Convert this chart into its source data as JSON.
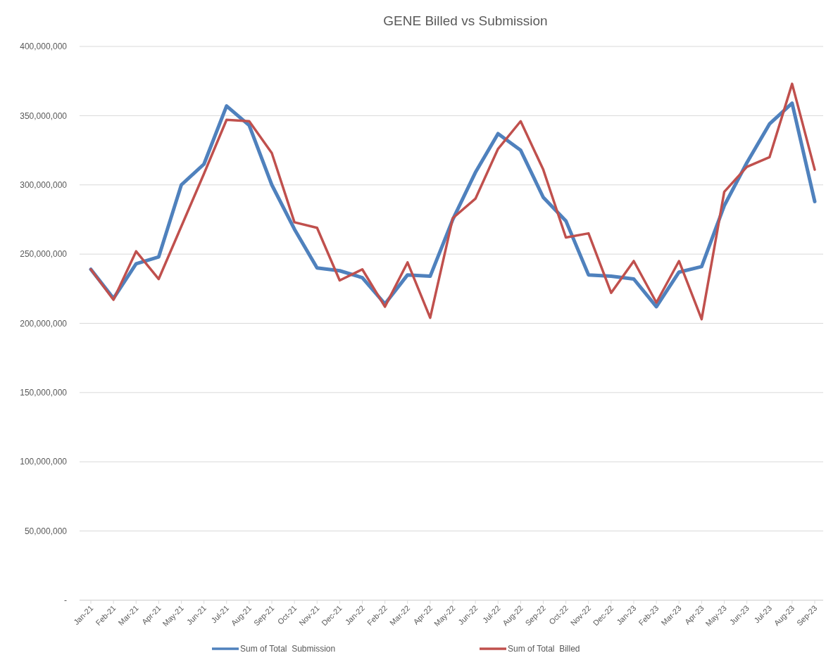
{
  "chart_data": {
    "type": "line",
    "title": "GENE Billed vs Submission",
    "categories": [
      "Jan-21",
      "Feb-21",
      "Mar-21",
      "Apr-21",
      "May-21",
      "Jun-21",
      "Jul-21",
      "Aug-21",
      "Sep-21",
      "Oct-21",
      "Nov-21",
      "Dec-21",
      "Jan-22",
      "Feb-22",
      "Mar-22",
      "Apr-22",
      "May-22",
      "Jun-22",
      "Jul-22",
      "Aug-22",
      "Sep-22",
      "Oct-22",
      "Nov-22",
      "Dec-22",
      "Jan-23",
      "Feb-23",
      "Mar-23",
      "Apr-23",
      "May-23",
      "Jun-23",
      "Jul-23",
      "Aug-23",
      "Sep-23"
    ],
    "series": [
      {
        "name": "Sum of Total_Submission",
        "color": "#4f81bd",
        "values": [
          239000000,
          218000000,
          243000000,
          248000000,
          300000000,
          315000000,
          357000000,
          343000000,
          300000000,
          268000000,
          240000000,
          238000000,
          233000000,
          214000000,
          235000000,
          234000000,
          275000000,
          309000000,
          337000000,
          325000000,
          291000000,
          274000000,
          235000000,
          234000000,
          232000000,
          212000000,
          237000000,
          241000000,
          285000000,
          316000000,
          344000000,
          359000000,
          288000000
        ]
      },
      {
        "name": "Sum of Total_Billed",
        "color": "#c0504d",
        "values": [
          239000000,
          217000000,
          252000000,
          232000000,
          270000000,
          308000000,
          347000000,
          346000000,
          323000000,
          273000000,
          269000000,
          231000000,
          239000000,
          212000000,
          244000000,
          204000000,
          276000000,
          290000000,
          326000000,
          346000000,
          311000000,
          262000000,
          265000000,
          222000000,
          245000000,
          215000000,
          245000000,
          203000000,
          295000000,
          313000000,
          320000000,
          373000000,
          311000000
        ]
      }
    ],
    "ylim": [
      0,
      400000000
    ],
    "yticks": [
      {
        "value": 0,
        "label": "-"
      },
      {
        "value": 50000000,
        "label": "50,000,000"
      },
      {
        "value": 100000000,
        "label": "100,000,000"
      },
      {
        "value": 150000000,
        "label": "150,000,000"
      },
      {
        "value": 200000000,
        "label": "200,000,000"
      },
      {
        "value": 250000000,
        "label": "250,000,000"
      },
      {
        "value": 300000000,
        "label": "300,000,000"
      },
      {
        "value": 350000000,
        "label": "350,000,000"
      },
      {
        "value": 400000000,
        "label": "400,000,000"
      }
    ],
    "grid": "y",
    "legend": "bottom",
    "marker": "none",
    "line_style": "solid"
  }
}
